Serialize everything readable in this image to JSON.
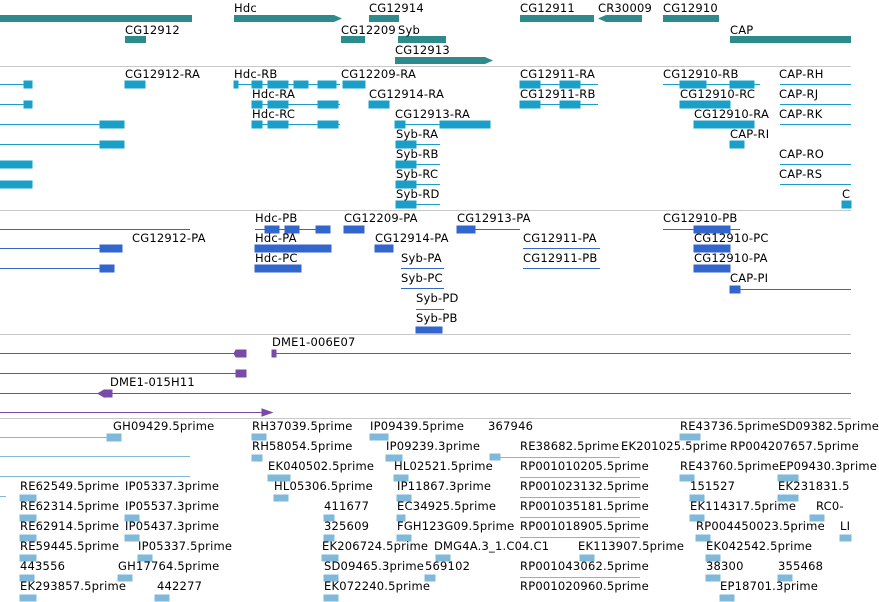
{
  "colors": {
    "gene": "#2e8b8b",
    "transcript": "#1aa0c8",
    "protein": "#3366cc",
    "clone": "#7a4aa8",
    "est": "#7fb8d8",
    "separator": "#c8c8c8"
  },
  "tracks": {
    "genes": {
      "labels": [
        "CG12912",
        "Hdc",
        "CG12914",
        "CG12209",
        "Syb",
        "CG12913",
        "CG12911",
        "CR30009",
        "CG12910",
        "CAP"
      ]
    },
    "transcripts": {
      "labels": [
        "CG12912-RA",
        "Hdc-RB",
        "CG12209-RA",
        "CG12911-RA",
        "CG12910-RB",
        "CAP-RH",
        "Hdc-RA",
        "CG12914-RA",
        "CG12911-RB",
        "CG12910-RC",
        "CAP-RJ",
        "Hdc-RC",
        "CG12913-RA",
        "CG12910-RA",
        "CAP-RK",
        "Syb-RA",
        "CAP-RI",
        "Syb-RB",
        "CAP-RO",
        "Syb-RC",
        "CAP-RS",
        "Syb-RD",
        "C"
      ]
    },
    "proteins": {
      "labels": [
        "Hdc-PB",
        "CG12209-PA",
        "CG12913-PA",
        "CG12910-PB",
        "CG12912-PA",
        "Hdc-PA",
        "CG12914-PA",
        "CG12911-PA",
        "CG12910-PC",
        "Hdc-PC",
        "Syb-PA",
        "CG12911-PB",
        "CG12910-PA",
        "Syb-PC",
        "CAP-PI",
        "Syb-PD",
        "Syb-PB"
      ]
    },
    "clones": {
      "labels": [
        "DME1-006E07",
        "DME1-015H11"
      ]
    },
    "ests": {
      "labels": [
        "GH09429.5prime",
        "RH37039.5prime",
        "IP09439.5prime",
        "367946",
        "RE43736.5prime",
        "SD09382.5prime",
        "RH58054.5prime",
        "IP09239.3prime",
        "RE38682.5prime",
        "EK201025.5prime",
        "RP004207657.5prime",
        "EK040502.5prime",
        "HL02521.5prime",
        "RP001010205.5prime",
        "RE43760.5prime",
        "EP09430.3prime",
        "RE62549.5prime",
        "IP05337.3prime",
        "HL05306.5prime",
        "IP11867.3prime",
        "RP001023132.5prime",
        "151527",
        "EK231831.5",
        "RE62314.5prime",
        "IP05537.3prime",
        "411677",
        "EC34925.5prime",
        "RP001035181.5prime",
        "EK114317.5prime",
        "RC0-",
        "RE62914.5prime",
        "IP05437.3prime",
        "325609",
        "FGH123G09.5prime",
        "RP001018905.5prime",
        "RP004450023.5prime",
        "LI",
        "RE59445.5prime",
        "IP05337.5prime",
        "EK206724.5prime",
        "DMG4A.3_1.C04.C1",
        "EK113907.5prime",
        "EK042542.5prime",
        "443556",
        "GH17764.5prime",
        "SD09465.3prime",
        "569102",
        "RP001043062.5prime",
        "38300",
        "355468",
        "EK293857.5prime",
        "442277",
        "EK072240.5prime",
        "RP001020960.5prime",
        "EP18701.3prime"
      ]
    }
  }
}
